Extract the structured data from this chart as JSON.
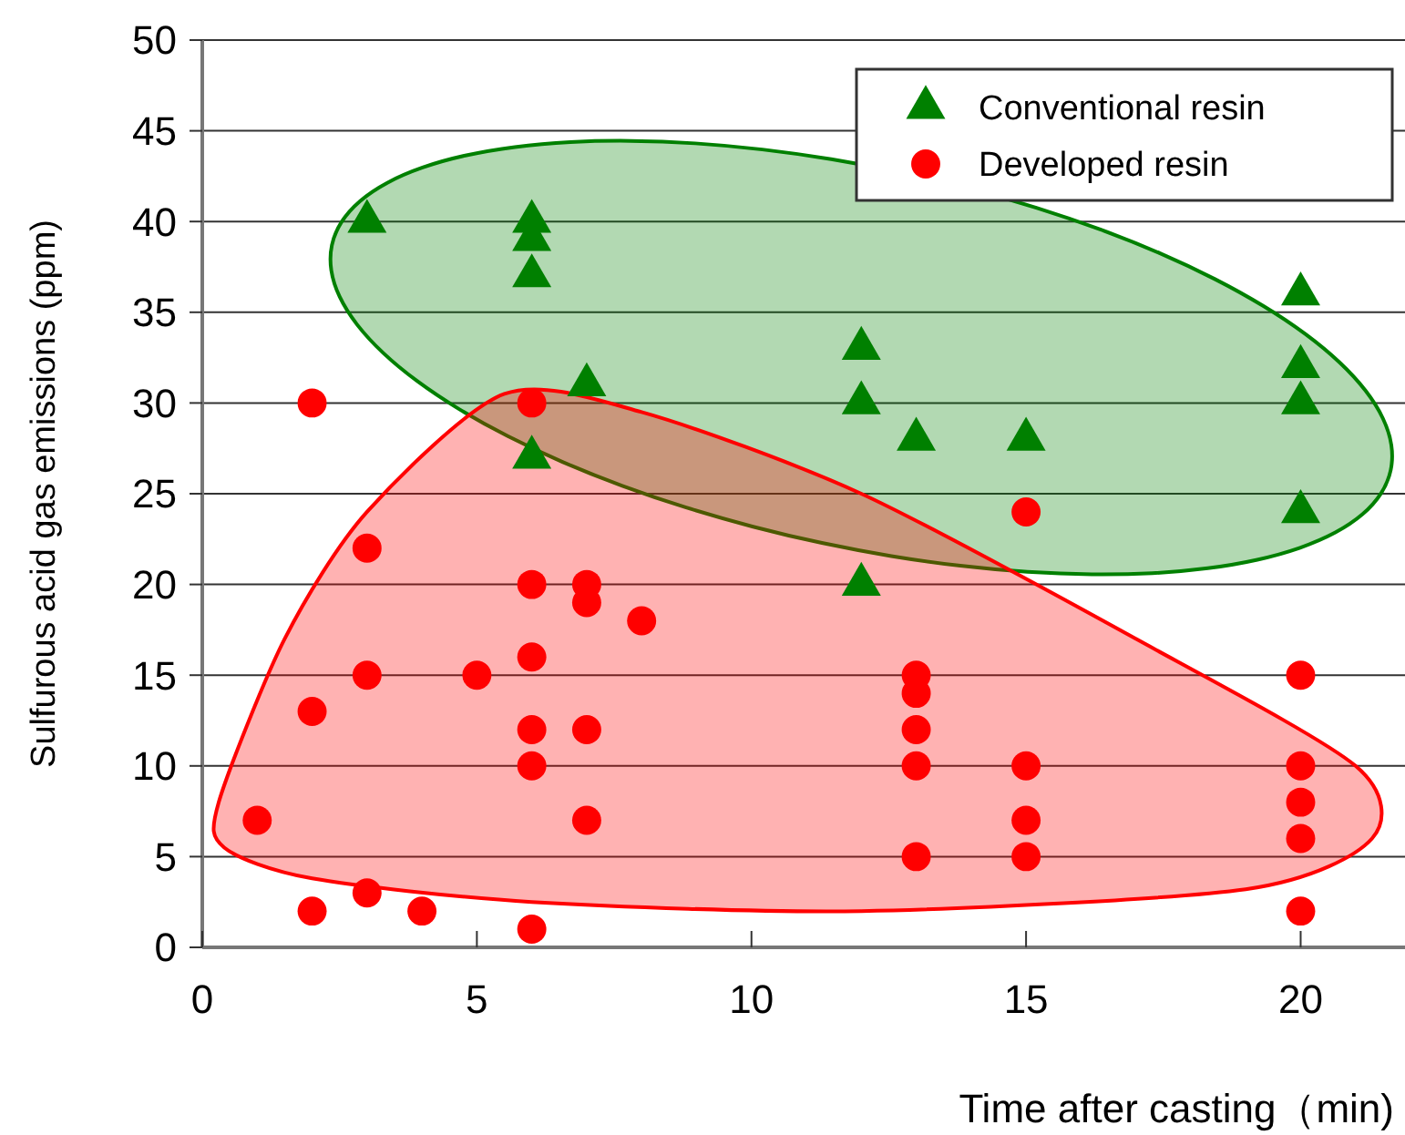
{
  "chart_data": {
    "type": "scatter",
    "xlabel": "Time after casting（min)",
    "ylabel": "Sulfurous acid gas emissions (ppm)",
    "xlim": [
      0,
      21.9
    ],
    "xticks": [
      0,
      5,
      10,
      15,
      20
    ],
    "ylim": [
      0,
      50
    ],
    "yticks": [
      0,
      5,
      10,
      15,
      20,
      25,
      30,
      35,
      40,
      45,
      50
    ],
    "grid": "y",
    "legend": "top right",
    "series": [
      {
        "name": "Conventional resin",
        "color": "#008000",
        "marker": "triangle",
        "x": [
          3,
          6,
          6,
          6,
          6,
          7,
          12,
          12,
          12,
          13,
          15,
          20,
          20,
          20,
          20
        ],
        "values": [
          40,
          40,
          39,
          37,
          27,
          31,
          33,
          30,
          20,
          28,
          28,
          36,
          32,
          30,
          24
        ]
      },
      {
        "name": "Developed resin",
        "color": "#ff0000",
        "marker": "circle",
        "x": [
          1,
          2,
          2,
          2,
          3,
          3,
          3,
          4,
          5,
          6,
          6,
          6,
          6,
          6,
          6,
          7,
          7,
          7,
          7,
          8,
          13,
          13,
          13,
          13,
          13,
          15,
          15,
          15,
          15,
          20,
          20,
          20,
          20,
          20
        ],
        "values": [
          7,
          30,
          13,
          2,
          22,
          15,
          3,
          2,
          15,
          30,
          20,
          16,
          12,
          10,
          1,
          20,
          19,
          12,
          7,
          18,
          15,
          14,
          12,
          10,
          5,
          24,
          10,
          7,
          5,
          15,
          10,
          8,
          6,
          2
        ]
      }
    ]
  }
}
